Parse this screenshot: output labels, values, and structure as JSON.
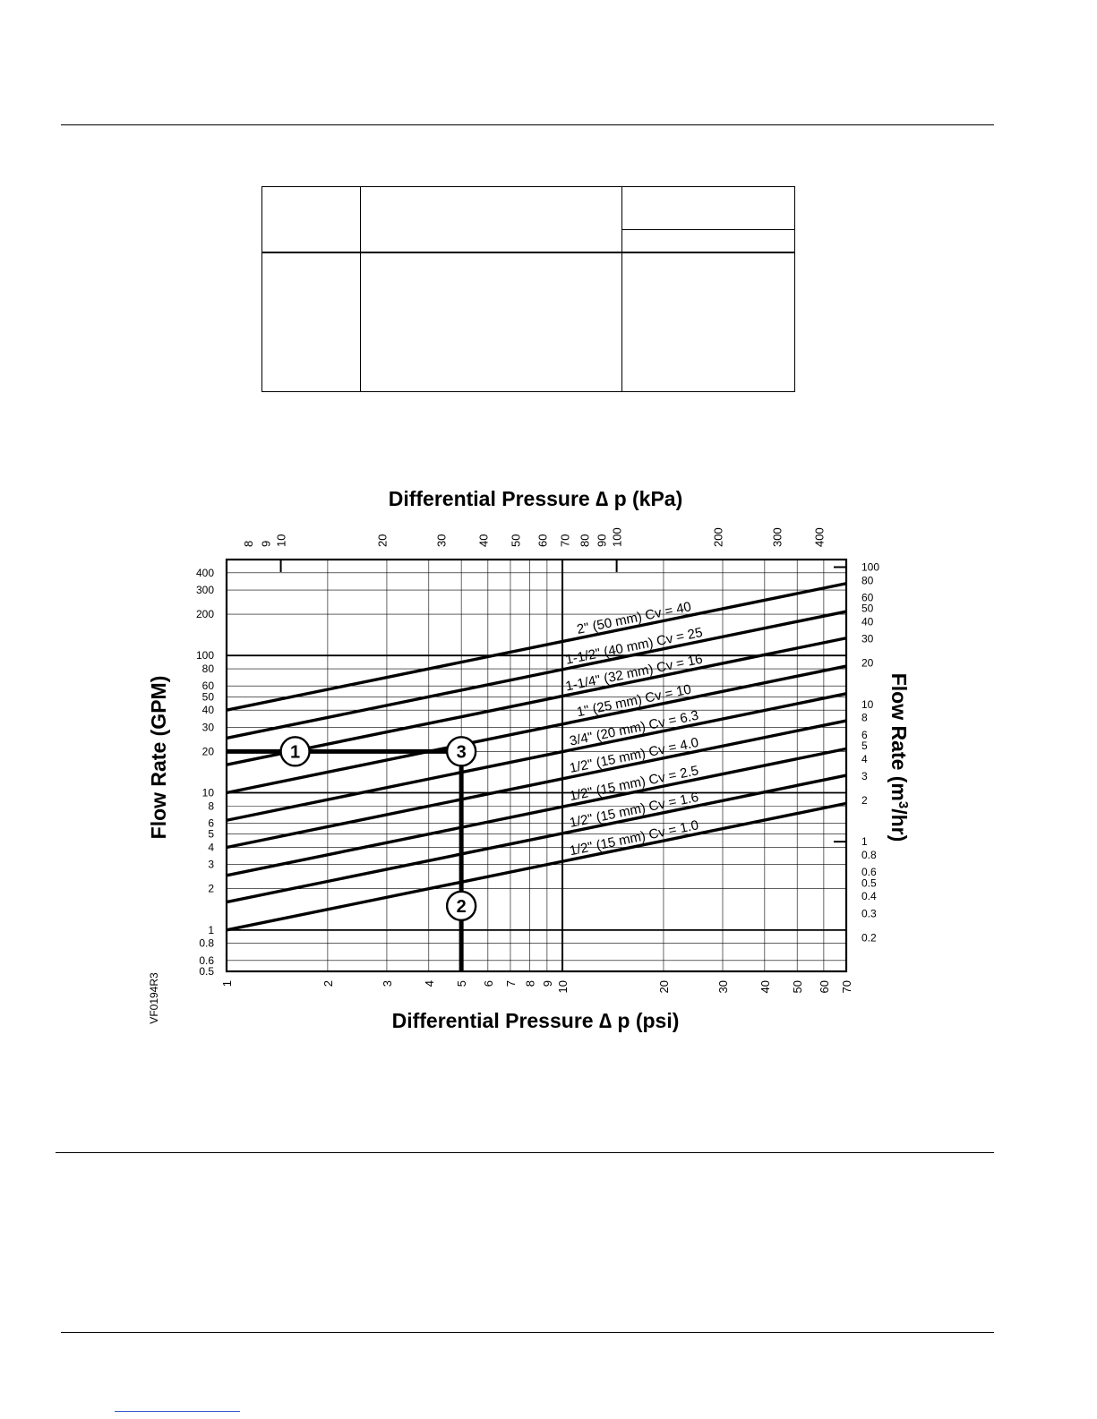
{
  "chart_data": {
    "type": "line",
    "title": "Differential Pressure ∆ p (kPa)",
    "xlabel": "Differential Pressure ∆ p (psi)",
    "ylabel": "Flow Rate (GPM)",
    "ylabel_right_prefix": "Flow Rate (m",
    "ylabel_right_sup": "3",
    "ylabel_right_suffix": "/hr)",
    "x_scale": "log",
    "y_scale": "log",
    "xlim": [
      1,
      70
    ],
    "ylim": [
      0.5,
      500
    ],
    "x_ticks": [
      1,
      2,
      3,
      4,
      5,
      6,
      7,
      8,
      9,
      10,
      20,
      30,
      40,
      50,
      60,
      70
    ],
    "y_ticks": [
      400,
      300,
      200,
      100,
      80,
      60,
      50,
      40,
      30,
      20,
      10,
      8,
      6,
      5,
      4,
      3,
      2,
      1,
      0.8,
      0.6,
      0.5
    ],
    "top_axis_ticks_kpa": [
      8,
      9,
      10,
      20,
      30,
      40,
      50,
      60,
      70,
      80,
      90,
      100,
      200,
      300,
      400
    ],
    "right_axis_ticks_m3hr": [
      100,
      80,
      60,
      50,
      40,
      30,
      20,
      10,
      8,
      6,
      5,
      4,
      3,
      2,
      1,
      0.8,
      0.6,
      0.5,
      0.4,
      0.3,
      0.2
    ],
    "series": [
      {
        "name": "2\" (50 mm) Cv = 40",
        "cv": 40
      },
      {
        "name": "1-1/2\" (40 mm) Cv = 25",
        "cv": 25
      },
      {
        "name": "1-1/4\" (32 mm) Cv = 16",
        "cv": 16
      },
      {
        "name": "1\" (25 mm) Cv = 10",
        "cv": 10
      },
      {
        "name": "3/4\" (20 mm) Cv = 6.3",
        "cv": 6.3
      },
      {
        "name": "1/2\" (15 mm) Cv = 4.0",
        "cv": 4.0
      },
      {
        "name": "1/2\" (15 mm) Cv = 2.5",
        "cv": 2.5
      },
      {
        "name": "1/2\" (15 mm) Cv = 1.6",
        "cv": 1.6
      },
      {
        "name": "1/2\" (15 mm) Cv = 1.0",
        "cv": 1.0
      }
    ],
    "example": {
      "flow_gpm": 20,
      "pressure_psi": 5,
      "markers": [
        {
          "label": "1",
          "x": 1.6,
          "y": 20
        },
        {
          "label": "3",
          "x": 5,
          "y": 20
        },
        {
          "label": "2",
          "x": 5,
          "y": 1.5
        }
      ]
    },
    "grid": true,
    "figure_code": "VF0194R3"
  }
}
